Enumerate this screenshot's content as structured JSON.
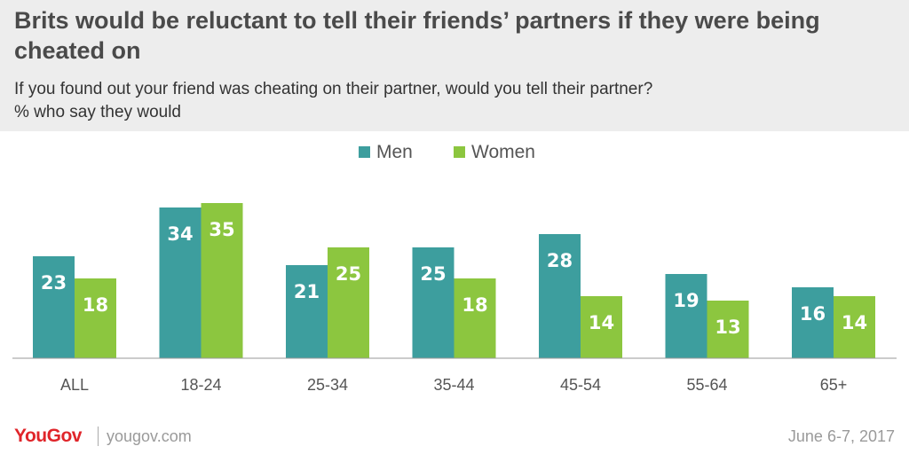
{
  "header": {
    "title": "Brits would be reluctant to tell their friends’ partners if they were being cheated on",
    "question": "If you found out your friend was cheating on their partner, would you tell their partner?",
    "measure": "% who say they would"
  },
  "footer": {
    "logo": "YouGov",
    "site": "yougov.com",
    "date": "June 6-7, 2017"
  },
  "chart_data": {
    "type": "bar",
    "categories": [
      "ALL",
      "18-24",
      "25-34",
      "35-44",
      "45-54",
      "55-64",
      "65+"
    ],
    "series": [
      {
        "name": "Men",
        "color": "#3d9e9e",
        "values": [
          23,
          34,
          21,
          25,
          28,
          19,
          16
        ]
      },
      {
        "name": "Women",
        "color": "#8cc63f",
        "values": [
          18,
          35,
          25,
          18,
          14,
          13,
          14
        ]
      }
    ],
    "ylim": [
      0,
      35
    ],
    "grid": false,
    "legend": "top-center",
    "data_labels": true
  }
}
